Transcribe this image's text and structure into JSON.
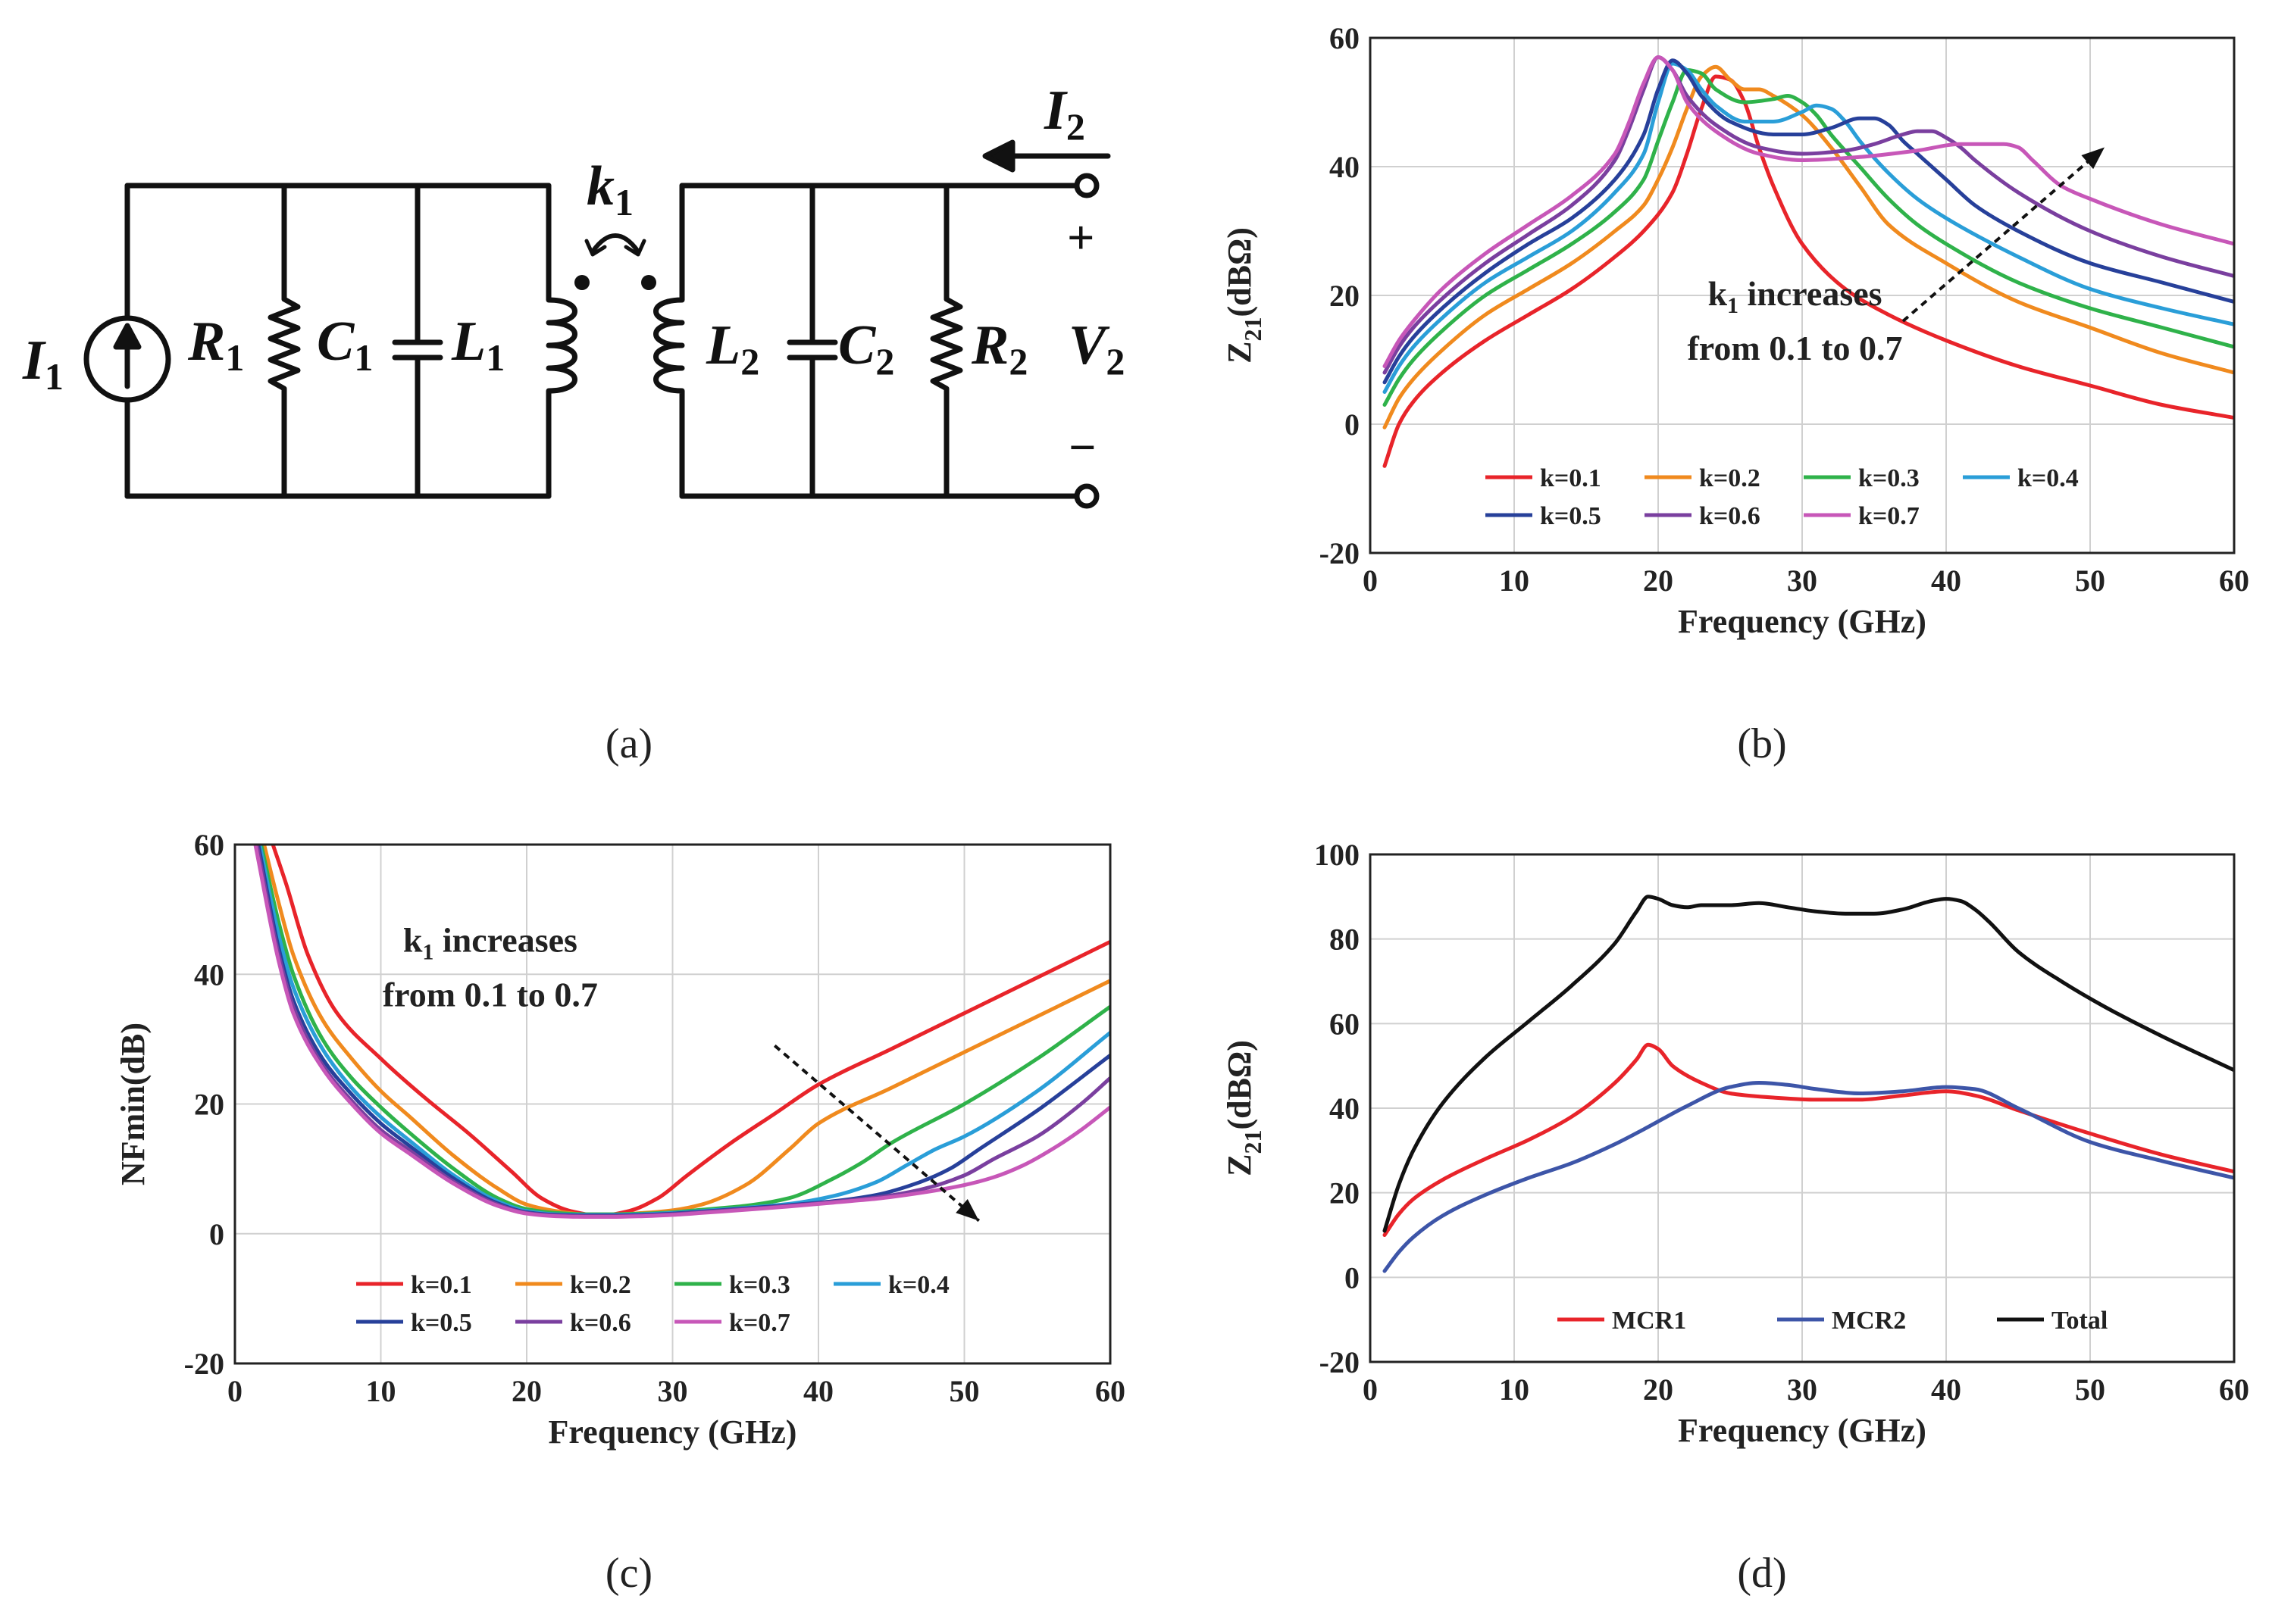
{
  "captions": {
    "a": "(a)",
    "b": "(b)",
    "c": "(c)",
    "d": "(d)"
  },
  "circuit": {
    "I1": {
      "main": "I",
      "sub": "1"
    },
    "R1": {
      "main": "R",
      "sub": "1"
    },
    "C1": {
      "main": "C",
      "sub": "1"
    },
    "L1": {
      "main": "L",
      "sub": "1"
    },
    "k1": {
      "main": "k",
      "sub": "1"
    },
    "L2": {
      "main": "L",
      "sub": "2"
    },
    "C2": {
      "main": "C",
      "sub": "2"
    },
    "R2": {
      "main": "R",
      "sub": "2"
    },
    "V2": {
      "main": "V",
      "sub": "2"
    },
    "I2": {
      "main": "I",
      "sub": "2"
    },
    "plus": "+",
    "minus": "−"
  },
  "colors": {
    "k0.1": "#e8242a",
    "k0.2": "#f08a1e",
    "k0.3": "#2fb24a",
    "k0.4": "#2a9ed8",
    "k0.5": "#27409a",
    "k0.6": "#7a3f9f",
    "k0.7": "#c757b8",
    "MCR1": "#e8242a",
    "MCR2": "#3d55a8",
    "Total": "#111111",
    "grid": "#d0d0d0",
    "axis": "#222222"
  },
  "chart_data": [
    {
      "id": "b",
      "type": "line",
      "xlabel": "Frequency (GHz)",
      "ylabel": {
        "main": "Z",
        "sub": "21",
        "rest": "(dBΩ)"
      },
      "xlim": [
        0,
        60
      ],
      "ylim": [
        -20,
        60
      ],
      "xticks": [
        0,
        10,
        20,
        30,
        40,
        50,
        60
      ],
      "yticks": [
        -20,
        0,
        20,
        40,
        60
      ],
      "grid": true,
      "annotation": {
        "line1_main": "k",
        "line1_sub": "1",
        "line1_rest": " increases",
        "line2": "from 0.1 to 0.7",
        "arrow_from": [
          37,
          16
        ],
        "arrow_to": [
          51,
          43
        ]
      },
      "legend": {
        "placement": "bottom",
        "columns": 4
      },
      "series": [
        {
          "name": "k=0.1",
          "color_key": "k0.1",
          "x": [
            1,
            2,
            3,
            5,
            8,
            11,
            14,
            17,
            19,
            21,
            22,
            23,
            24,
            25,
            26,
            27,
            28,
            30,
            33,
            36,
            40,
            45,
            50,
            55,
            60
          ],
          "y": [
            -6.5,
            0,
            3.5,
            8,
            13,
            17,
            21,
            26,
            30,
            36,
            42,
            49,
            54,
            53.5,
            50,
            43,
            37,
            28,
            21,
            17,
            13,
            9,
            6,
            3,
            1
          ]
        },
        {
          "name": "k=0.2",
          "color_key": "k0.2",
          "x": [
            1,
            2,
            3,
            5,
            8,
            11,
            14,
            17,
            19,
            20,
            21,
            22,
            23,
            24,
            25,
            26,
            27,
            28,
            30,
            32,
            34,
            36,
            40,
            45,
            50,
            55,
            60
          ],
          "y": [
            -0.5,
            4,
            7,
            11.5,
            17,
            21,
            25,
            30,
            34,
            38,
            43,
            49,
            54,
            55.5,
            53.5,
            52,
            52,
            51,
            48,
            43,
            37,
            31,
            25,
            19,
            15,
            11,
            8
          ]
        },
        {
          "name": "k=0.3",
          "color_key": "k0.3",
          "x": [
            1,
            2,
            3,
            5,
            8,
            11,
            14,
            17,
            19,
            20,
            21,
            22,
            23,
            24,
            26,
            28,
            29,
            30,
            31,
            32,
            34,
            36,
            38,
            40,
            45,
            50,
            55,
            60
          ],
          "y": [
            3,
            7,
            10,
            14.5,
            20,
            24,
            28,
            33,
            38,
            44,
            50,
            55,
            54.5,
            52,
            50,
            50.5,
            51,
            50,
            48,
            45,
            40,
            35,
            31,
            28,
            22,
            18,
            15,
            12
          ]
        },
        {
          "name": "k=0.4",
          "color_key": "k0.4",
          "x": [
            1,
            2,
            3,
            5,
            8,
            11,
            14,
            17,
            19,
            20,
            21,
            22,
            23,
            24,
            26,
            28,
            30,
            31,
            32,
            33,
            34,
            36,
            38,
            40,
            45,
            50,
            55,
            60
          ],
          "y": [
            5,
            9,
            12,
            16.5,
            22,
            26,
            30,
            36,
            42,
            50,
            56,
            55,
            52,
            49.5,
            47,
            47,
            48.5,
            49.5,
            49,
            47,
            44,
            39,
            35,
            32,
            26,
            21,
            18,
            15.5
          ]
        },
        {
          "name": "k=0.5",
          "color_key": "k0.5",
          "x": [
            1,
            2,
            3,
            5,
            8,
            11,
            14,
            17,
            19,
            20,
            21,
            22,
            23,
            25,
            28,
            30,
            32,
            34,
            35,
            36,
            37,
            38,
            40,
            42,
            45,
            50,
            55,
            60
          ],
          "y": [
            6.5,
            10.5,
            13.5,
            18,
            23.5,
            28,
            32,
            38,
            45,
            52,
            56.5,
            54.5,
            51,
            47,
            45,
            45,
            46,
            47.5,
            47.5,
            46.5,
            44,
            42,
            38,
            34,
            30,
            25,
            22,
            19
          ]
        },
        {
          "name": "k=0.6",
          "color_key": "k0.6",
          "x": [
            1,
            2,
            3,
            5,
            8,
            11,
            14,
            17,
            18,
            19,
            20,
            21,
            22,
            24,
            27,
            30,
            33,
            35,
            37,
            38,
            39,
            40,
            41,
            42,
            45,
            50,
            55,
            60
          ],
          "y": [
            8,
            12,
            15,
            19.5,
            25,
            29.5,
            34,
            41,
            46,
            52,
            57,
            55,
            51,
            46.5,
            43,
            42,
            42.5,
            43.5,
            45,
            45.5,
            45.5,
            44.5,
            43,
            41,
            36,
            30,
            26,
            23
          ]
        },
        {
          "name": "k=0.7",
          "color_key": "k0.7",
          "x": [
            1,
            2,
            3,
            5,
            8,
            11,
            14,
            17,
            18,
            19,
            20,
            21,
            22,
            24,
            27,
            30,
            34,
            38,
            41,
            43,
            44,
            45,
            46,
            48,
            50,
            55,
            60
          ],
          "y": [
            9,
            13,
            16,
            21,
            26.5,
            31,
            35.5,
            42,
            47,
            53,
            57,
            55,
            50,
            45.5,
            42,
            41,
            41.5,
            42.5,
            43.5,
            43.5,
            43.5,
            43,
            41,
            37,
            35,
            31,
            28
          ]
        }
      ]
    },
    {
      "id": "c",
      "type": "line",
      "xlabel": "Frequency (GHz)",
      "ylabel": {
        "main": "NFmin(dB)",
        "sub": "",
        "rest": ""
      },
      "xlim": [
        0,
        60
      ],
      "ylim": [
        -20,
        60
      ],
      "xticks": [
        0,
        10,
        20,
        30,
        40,
        50,
        60
      ],
      "yticks": [
        -20,
        0,
        20,
        40,
        60
      ],
      "grid": true,
      "annotation": {
        "line1_main": "k",
        "line1_sub": "1",
        "line1_rest": " increases",
        "line2": "from 0.1 to 0.7",
        "arrow_from": [
          37,
          29
        ],
        "arrow_to": [
          51,
          2
        ]
      },
      "legend": {
        "placement": "bottom",
        "columns": 4
      },
      "series": [
        {
          "name": "k=0.1",
          "color_key": "k0.1",
          "x": [
            2.6,
            3.5,
            5,
            7,
            10,
            13,
            16,
            19,
            21,
            23,
            25,
            27,
            29,
            31,
            34,
            37,
            40,
            45,
            50,
            55,
            60
          ],
          "y": [
            60,
            54,
            43,
            34,
            27,
            21,
            15.5,
            9.5,
            5.5,
            3.5,
            2.8,
            3.5,
            5.5,
            9,
            14,
            18.5,
            23,
            28.5,
            34,
            39.5,
            45
          ]
        },
        {
          "name": "k=0.2",
          "color_key": "k0.2",
          "x": [
            2,
            3,
            4,
            6,
            8,
            10,
            12,
            15,
            18,
            20,
            22,
            24,
            26,
            28,
            30,
            32,
            35,
            38,
            40,
            45,
            50,
            55,
            60
          ],
          "y": [
            60,
            51,
            43,
            33,
            27,
            22,
            18,
            12,
            7,
            4.5,
            3.5,
            3,
            3,
            3.2,
            3.6,
            4.5,
            7.5,
            13,
            17,
            22.5,
            28,
            33.5,
            39
          ]
        },
        {
          "name": "k=0.3",
          "color_key": "k0.3",
          "x": [
            1.8,
            3,
            4,
            6,
            8,
            10,
            12,
            15,
            18,
            20,
            22,
            24,
            26,
            28,
            30,
            32,
            35,
            38,
            41,
            43,
            45,
            50,
            55,
            60
          ],
          "y": [
            60,
            48,
            40,
            30,
            24,
            19.5,
            15.5,
            10,
            5.5,
            3.8,
            3.2,
            3,
            3,
            3.1,
            3.3,
            3.7,
            4.3,
            5.5,
            8.5,
            11,
            14,
            20,
            27,
            35
          ]
        },
        {
          "name": "k=0.4",
          "color_key": "k0.4",
          "x": [
            1.7,
            3,
            4,
            6,
            8,
            10,
            12,
            15,
            18,
            20,
            22,
            24,
            26,
            28,
            30,
            32,
            35,
            38,
            41,
            44,
            46,
            48,
            50,
            55,
            60
          ],
          "y": [
            60,
            46,
            38,
            28.5,
            22.5,
            18,
            14.3,
            9,
            5,
            3.5,
            3,
            2.9,
            2.9,
            3,
            3.2,
            3.5,
            4,
            4.6,
            5.8,
            8,
            10.5,
            13,
            15,
            22,
            31
          ]
        },
        {
          "name": "k=0.5",
          "color_key": "k0.5",
          "x": [
            1.6,
            3,
            4,
            6,
            8,
            10,
            12,
            15,
            18,
            20,
            22,
            24,
            26,
            28,
            30,
            32,
            35,
            38,
            41,
            44,
            47,
            49,
            51,
            55,
            60
          ],
          "y": [
            60,
            44,
            36,
            27,
            21.5,
            17,
            13.5,
            8.5,
            4.7,
            3.3,
            2.9,
            2.8,
            2.8,
            2.9,
            3.1,
            3.4,
            3.9,
            4.4,
            5,
            6,
            8,
            10,
            13,
            19,
            27.5
          ]
        },
        {
          "name": "k=0.6",
          "color_key": "k0.6",
          "x": [
            1.5,
            3,
            4,
            6,
            8,
            10,
            12,
            15,
            18,
            20,
            22,
            24,
            26,
            28,
            30,
            32,
            35,
            38,
            41,
            44,
            47,
            50,
            52,
            55,
            58,
            60
          ],
          "y": [
            60,
            43,
            35,
            26,
            20.5,
            16,
            12.8,
            8,
            4.5,
            3.2,
            2.8,
            2.7,
            2.7,
            2.8,
            3,
            3.3,
            3.8,
            4.3,
            4.9,
            5.6,
            6.8,
            9,
            11.5,
            15,
            20,
            24
          ]
        },
        {
          "name": "k=0.7",
          "color_key": "k0.7",
          "x": [
            1.4,
            3,
            4,
            6,
            8,
            10,
            12,
            15,
            18,
            20,
            22,
            24,
            26,
            28,
            30,
            32,
            35,
            38,
            41,
            44,
            47,
            50,
            52,
            54,
            56,
            58,
            60
          ],
          "y": [
            60,
            42,
            34,
            25.5,
            20,
            15.5,
            12.3,
            7.7,
            4.3,
            3.1,
            2.7,
            2.6,
            2.6,
            2.7,
            2.9,
            3.2,
            3.7,
            4.2,
            4.8,
            5.4,
            6.3,
            7.5,
            8.7,
            10.5,
            13,
            16,
            19.5
          ]
        }
      ]
    },
    {
      "id": "d",
      "type": "line",
      "xlabel": "Frequency (GHz)",
      "ylabel": {
        "main": "Z",
        "sub": "21",
        "rest": "(dBΩ)"
      },
      "xlim": [
        0,
        60
      ],
      "ylim": [
        -20,
        100
      ],
      "xticks": [
        0,
        10,
        20,
        30,
        40,
        50,
        60
      ],
      "yticks": [
        -20,
        0,
        20,
        40,
        60,
        80,
        100
      ],
      "grid": true,
      "legend": {
        "placement": "bottom",
        "columns": 3
      },
      "series": [
        {
          "name": "MCR1",
          "color_key": "MCR1",
          "x": [
            1,
            2,
            3,
            5,
            8,
            11,
            14,
            17,
            18.5,
            19.3,
            20,
            21,
            23,
            25,
            28,
            31,
            34,
            37,
            40,
            42,
            45,
            50,
            55,
            60
          ],
          "y": [
            10,
            15,
            18.5,
            23,
            28,
            32.5,
            38,
            46,
            51.5,
            55,
            54,
            50,
            46,
            43.5,
            42.5,
            42,
            42,
            43,
            44,
            43,
            39.5,
            34,
            29,
            25
          ]
        },
        {
          "name": "MCR2",
          "color_key": "MCR2",
          "x": [
            1,
            2,
            3,
            5,
            8,
            11,
            14,
            17,
            19,
            22,
            25,
            27,
            29,
            31,
            34,
            37,
            40,
            42,
            45,
            50,
            55,
            60
          ],
          "y": [
            1.5,
            6,
            9.5,
            14.5,
            19.5,
            23.5,
            27,
            31.5,
            35,
            40.5,
            45,
            46,
            45.5,
            44.5,
            43.5,
            44,
            45,
            44.5,
            40,
            32,
            27.5,
            23.5
          ]
        },
        {
          "name": "Total",
          "color_key": "Total",
          "x": [
            1,
            2,
            3,
            5,
            8,
            11,
            14,
            17,
            18.5,
            19.3,
            20,
            21,
            22,
            23,
            25,
            27,
            29,
            31,
            33,
            35,
            37,
            39,
            40,
            41,
            42,
            43,
            45,
            48,
            51,
            55,
            60
          ],
          "y": [
            11,
            22,
            30,
            41,
            52,
            60.5,
            69,
            79,
            86.5,
            90,
            89.5,
            88,
            87.5,
            88,
            88,
            88.5,
            87.5,
            86.5,
            86,
            86,
            87,
            89,
            89.5,
            89,
            87,
            84,
            77,
            70,
            64,
            57,
            49
          ]
        }
      ]
    }
  ]
}
